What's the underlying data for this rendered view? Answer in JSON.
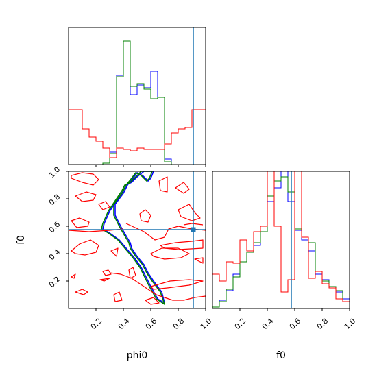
{
  "chart_data": {
    "type": "corner",
    "colors": {
      "blue": "#0000ff",
      "green": "#008000",
      "red": "#ff0000",
      "truth": "#1f77b4"
    },
    "parameters": [
      "phi0",
      "f0"
    ],
    "truths": {
      "phi0": 0.91,
      "f0": 0.575
    },
    "xlabels": {
      "phi0": "phi0",
      "f0": "f0"
    },
    "ylabel": "f0",
    "tick_labels": [
      "0.2",
      "0.4",
      "0.6",
      "0.8",
      "1.0"
    ],
    "xlim": [
      0.0,
      1.0
    ],
    "ylim": [
      0.0,
      1.0
    ],
    "phi0_hist": {
      "bin_edges": [
        0,
        0.05,
        0.1,
        0.15,
        0.2,
        0.25,
        0.3,
        0.35,
        0.4,
        0.45,
        0.5,
        0.55,
        0.6,
        0.65,
        0.7,
        0.75,
        0.8,
        0.85,
        0.9,
        0.95,
        1.0
      ],
      "series": [
        {
          "color": "blue",
          "values": [
            0,
            0,
            0,
            0,
            0,
            0.01,
            0.09,
            0.65,
            0.9,
            0.51,
            0.58,
            0.56,
            0.68,
            0.49,
            0.04,
            0,
            0,
            0,
            0,
            0
          ]
        },
        {
          "color": "green",
          "values": [
            0,
            0,
            0,
            0,
            0,
            0.01,
            0.08,
            0.64,
            0.9,
            0.57,
            0.59,
            0.55,
            0.48,
            0.49,
            0.02,
            0,
            0,
            0,
            0,
            0
          ]
        },
        {
          "color": "red",
          "values": [
            0.4,
            0.4,
            0.26,
            0.2,
            0.17,
            0.12,
            0.05,
            0.12,
            0.11,
            0.1,
            0.12,
            0.11,
            0.11,
            0.11,
            0.15,
            0.23,
            0.26,
            0.27,
            0.4,
            0.4
          ]
        }
      ]
    },
    "f0_hist": {
      "bin_edges": [
        0,
        0.05,
        0.1,
        0.15,
        0.2,
        0.25,
        0.3,
        0.35,
        0.4,
        0.45,
        0.5,
        0.55,
        0.6,
        0.65,
        0.7,
        0.75,
        0.8,
        0.85,
        0.9,
        0.95,
        1.0
      ],
      "series": [
        {
          "color": "blue",
          "values": [
            0.01,
            0.06,
            0.13,
            0.25,
            0.34,
            0.41,
            0.46,
            0.56,
            0.78,
            0.88,
            1.02,
            0.78,
            0.57,
            0.5,
            0.42,
            0.25,
            0.21,
            0.16,
            0.12,
            0.07
          ]
        },
        {
          "color": "green",
          "values": [
            0.01,
            0.05,
            0.14,
            0.23,
            0.34,
            0.41,
            0.48,
            0.56,
            0.82,
            0.93,
            0.96,
            0.85,
            0.58,
            0.52,
            0.48,
            0.27,
            0.2,
            0.16,
            0.13,
            0.05
          ]
        },
        {
          "color": "red",
          "values": [
            0.25,
            0.2,
            0.34,
            0.33,
            0.5,
            0.42,
            0.56,
            0.6,
            1.2,
            0.6,
            0.12,
            0.21,
            1.16,
            0.52,
            0.22,
            0.27,
            0.18,
            0.15,
            0.07,
            0.05
          ]
        }
      ]
    },
    "joint_contours": {
      "x": "phi0",
      "y": "f0",
      "series": [
        {
          "color": "blue",
          "kind": "tight",
          "x": [
            0.55,
            0.5,
            0.46,
            0.42,
            0.4,
            0.36,
            0.3,
            0.26,
            0.25,
            0.3,
            0.37,
            0.42,
            0.48,
            0.53,
            0.56,
            0.6,
            0.65,
            0.7,
            0.68,
            0.62,
            0.58,
            0.55,
            0.5,
            0.46,
            0.45,
            0.42,
            0.38,
            0.34,
            0.34,
            0.4,
            0.43,
            0.47,
            0.5,
            0.54,
            0.58,
            0.6,
            0.62,
            0.6,
            0.55
          ],
          "y": [
            1.0,
            0.96,
            0.92,
            0.9,
            0.86,
            0.8,
            0.71,
            0.62,
            0.58,
            0.55,
            0.5,
            0.44,
            0.37,
            0.3,
            0.24,
            0.16,
            0.07,
            0.04,
            0.12,
            0.2,
            0.26,
            0.32,
            0.38,
            0.44,
            0.48,
            0.53,
            0.6,
            0.68,
            0.76,
            0.84,
            0.9,
            0.95,
            0.99,
            0.97,
            0.93,
            0.95,
            1.0,
            1.0,
            1.0
          ]
        },
        {
          "color": "green",
          "kind": "tight",
          "x": [
            0.53,
            0.49,
            0.45,
            0.41,
            0.39,
            0.35,
            0.29,
            0.25,
            0.24,
            0.29,
            0.36,
            0.41,
            0.47,
            0.52,
            0.55,
            0.59,
            0.64,
            0.7,
            0.67,
            0.61,
            0.57,
            0.54,
            0.49,
            0.45,
            0.44,
            0.41,
            0.37,
            0.33,
            0.33,
            0.39,
            0.42,
            0.46,
            0.49,
            0.53,
            0.57,
            0.59,
            0.61,
            0.59,
            0.53
          ],
          "y": [
            1.0,
            0.96,
            0.92,
            0.9,
            0.86,
            0.8,
            0.71,
            0.62,
            0.58,
            0.55,
            0.5,
            0.44,
            0.37,
            0.3,
            0.24,
            0.16,
            0.07,
            0.03,
            0.12,
            0.2,
            0.26,
            0.32,
            0.38,
            0.44,
            0.48,
            0.53,
            0.6,
            0.68,
            0.76,
            0.84,
            0.9,
            0.95,
            0.99,
            0.97,
            0.93,
            0.95,
            1.0,
            1.0,
            1.0
          ]
        },
        {
          "color": "red",
          "kind": "loop",
          "x": [
            0.02,
            0.1,
            0.18,
            0.22,
            0.18,
            0.1,
            0.02
          ],
          "y": [
            0.97,
            0.99,
            0.98,
            0.94,
            0.9,
            0.92,
            0.95
          ]
        },
        {
          "color": "red",
          "kind": "loop",
          "x": [
            0.05,
            0.13,
            0.2,
            0.18,
            0.1,
            0.05
          ],
          "y": [
            0.82,
            0.85,
            0.83,
            0.79,
            0.78,
            0.82
          ]
        },
        {
          "color": "red",
          "kind": "loop",
          "x": [
            0.02,
            0.08,
            0.15,
            0.14,
            0.06,
            0.02
          ],
          "y": [
            0.64,
            0.66,
            0.63,
            0.6,
            0.59,
            0.64
          ]
        },
        {
          "color": "red",
          "kind": "loop",
          "x": [
            0.02,
            0.08,
            0.16,
            0.22,
            0.2,
            0.12,
            0.05,
            0.02
          ],
          "y": [
            0.42,
            0.47,
            0.5,
            0.46,
            0.41,
            0.39,
            0.4,
            0.42
          ]
        },
        {
          "color": "red",
          "kind": "loop",
          "x": [
            0.02,
            0.05,
            0.04,
            0.02
          ],
          "y": [
            0.23,
            0.25,
            0.22,
            0.23
          ]
        },
        {
          "color": "red",
          "kind": "loop",
          "x": [
            0.05,
            0.1,
            0.14,
            0.11,
            0.05
          ],
          "y": [
            0.12,
            0.14,
            0.12,
            0.1,
            0.12
          ]
        },
        {
          "color": "red",
          "kind": "loop",
          "x": [
            0.22,
            0.27,
            0.3,
            0.25,
            0.22
          ],
          "y": [
            0.76,
            0.78,
            0.74,
            0.72,
            0.76
          ]
        },
        {
          "color": "red",
          "kind": "loop",
          "x": [
            0.25,
            0.29,
            0.31,
            0.27,
            0.25
          ],
          "y": [
            0.27,
            0.28,
            0.25,
            0.24,
            0.27
          ]
        },
        {
          "color": "red",
          "kind": "loop",
          "x": [
            0.23,
            0.3,
            0.26,
            0.23
          ],
          "y": [
            0.21,
            0.22,
            0.2,
            0.21
          ]
        },
        {
          "color": "red",
          "kind": "loop",
          "x": [
            0.31,
            0.36,
            0.35,
            0.31
          ],
          "y": [
            0.42,
            0.44,
            0.38,
            0.42
          ]
        },
        {
          "color": "red",
          "kind": "loop",
          "x": [
            0.33,
            0.37,
            0.39,
            0.34,
            0.33
          ],
          "y": [
            0.1,
            0.12,
            0.06,
            0.05,
            0.1
          ]
        },
        {
          "color": "red",
          "kind": "loop",
          "x": [
            0.44,
            0.47,
            0.49,
            0.45,
            0.44
          ],
          "y": [
            0.28,
            0.3,
            0.24,
            0.22,
            0.28
          ]
        },
        {
          "color": "red",
          "kind": "loop",
          "x": [
            0.52,
            0.56,
            0.6,
            0.58,
            0.53,
            0.52
          ],
          "y": [
            0.69,
            0.72,
            0.68,
            0.63,
            0.64,
            0.69
          ]
        },
        {
          "color": "red",
          "kind": "loop",
          "x": [
            0.6,
            0.68,
            0.8,
            0.88,
            0.82,
            0.7,
            0.62,
            0.6
          ],
          "y": [
            0.4,
            0.44,
            0.44,
            0.4,
            0.37,
            0.36,
            0.38,
            0.4
          ]
        },
        {
          "color": "red",
          "kind": "loop",
          "x": [
            0.66,
            0.72,
            0.72,
            0.67,
            0.66
          ],
          "y": [
            0.93,
            0.96,
            0.85,
            0.86,
            0.93
          ]
        },
        {
          "color": "red",
          "kind": "loop",
          "x": [
            0.78,
            0.84,
            0.88,
            0.84,
            0.78
          ],
          "y": [
            0.88,
            0.92,
            0.87,
            0.84,
            0.88
          ]
        },
        {
          "color": "red",
          "kind": "loop",
          "x": [
            0.8,
            0.88,
            0.92,
            0.96,
            0.9,
            0.82,
            0.8
          ],
          "y": [
            0.72,
            0.76,
            0.7,
            0.66,
            0.64,
            0.67,
            0.72
          ]
        },
        {
          "color": "red",
          "kind": "loop",
          "x": [
            0.67,
            0.78,
            0.9,
            0.98,
            0.98,
            0.8,
            0.7,
            0.67
          ],
          "y": [
            0.46,
            0.48,
            0.49,
            0.5,
            0.44,
            0.43,
            0.44,
            0.46
          ]
        },
        {
          "color": "red",
          "kind": "loop",
          "x": [
            0.6,
            0.74,
            0.88,
            0.98,
            0.88,
            0.72,
            0.62,
            0.6
          ],
          "y": [
            0.16,
            0.2,
            0.21,
            0.2,
            0.17,
            0.15,
            0.14,
            0.16
          ]
        },
        {
          "color": "red",
          "kind": "loop",
          "x": [
            0.56,
            0.62,
            0.66,
            0.6,
            0.56
          ],
          "y": [
            0.06,
            0.08,
            0.04,
            0.03,
            0.06
          ]
        },
        {
          "color": "red",
          "kind": "loop",
          "x": [
            0.92,
            0.98,
            0.98,
            0.92
          ],
          "y": [
            0.36,
            0.37,
            0.33,
            0.36
          ]
        },
        {
          "color": "red",
          "kind": "line",
          "x": [
            0.42,
            0.55,
            0.63,
            0.7,
            0.73,
            0.8,
            0.9,
            1.0
          ],
          "y": [
            0.62,
            0.56,
            0.5,
            0.52,
            0.58,
            0.6,
            0.58,
            0.57
          ]
        },
        {
          "color": "red",
          "kind": "line",
          "x": [
            0.0,
            0.15,
            0.3,
            0.4
          ],
          "y": [
            0.57,
            0.56,
            0.57,
            0.58
          ]
        },
        {
          "color": "red",
          "kind": "line",
          "x": [
            0.3,
            0.38,
            0.46,
            0.52,
            0.58,
            0.64,
            0.7,
            0.76,
            0.84,
            0.92,
            1.0
          ],
          "y": [
            0.26,
            0.25,
            0.22,
            0.18,
            0.14,
            0.1,
            0.08,
            0.06,
            0.06,
            0.08,
            0.09
          ]
        },
        {
          "color": "red",
          "kind": "line",
          "x": [
            0.84,
            0.9,
            0.98
          ],
          "y": [
            0.61,
            0.62,
            0.61
          ]
        }
      ]
    },
    "truth_marker": {
      "phi0": 0.91,
      "f0": 0.575
    }
  }
}
